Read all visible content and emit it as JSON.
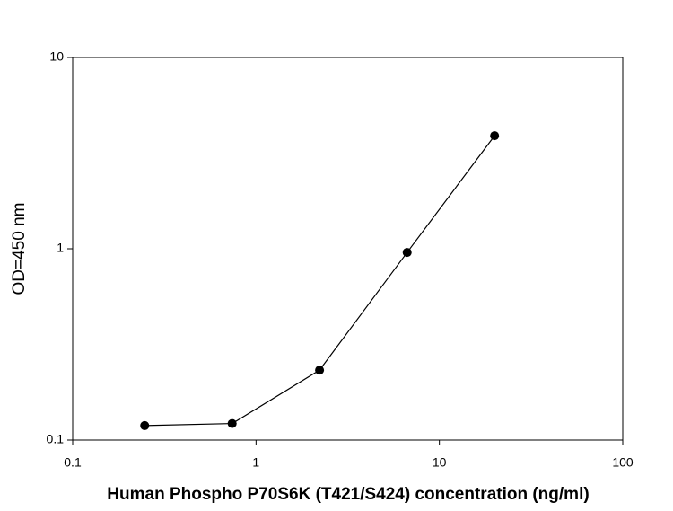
{
  "chart_data": {
    "type": "line",
    "x_label": "Human Phospho P70S6K (T421/S424) concentration (ng/ml)",
    "y_label": "OD=450 nm",
    "x": [
      0.247,
      0.741,
      2.22,
      6.67,
      20
    ],
    "series": [
      {
        "color": "#000000",
        "values": [
          0.119,
          0.122,
          0.232,
          0.957,
          3.9
        ]
      }
    ],
    "xlim": [
      0.1,
      100
    ],
    "ylim": [
      0.1,
      10
    ],
    "xticks": [
      0.1,
      1,
      10,
      100
    ],
    "yticks": [
      0.1,
      1,
      10
    ],
    "xscale": "log",
    "yscale": "log",
    "grid": false
  }
}
